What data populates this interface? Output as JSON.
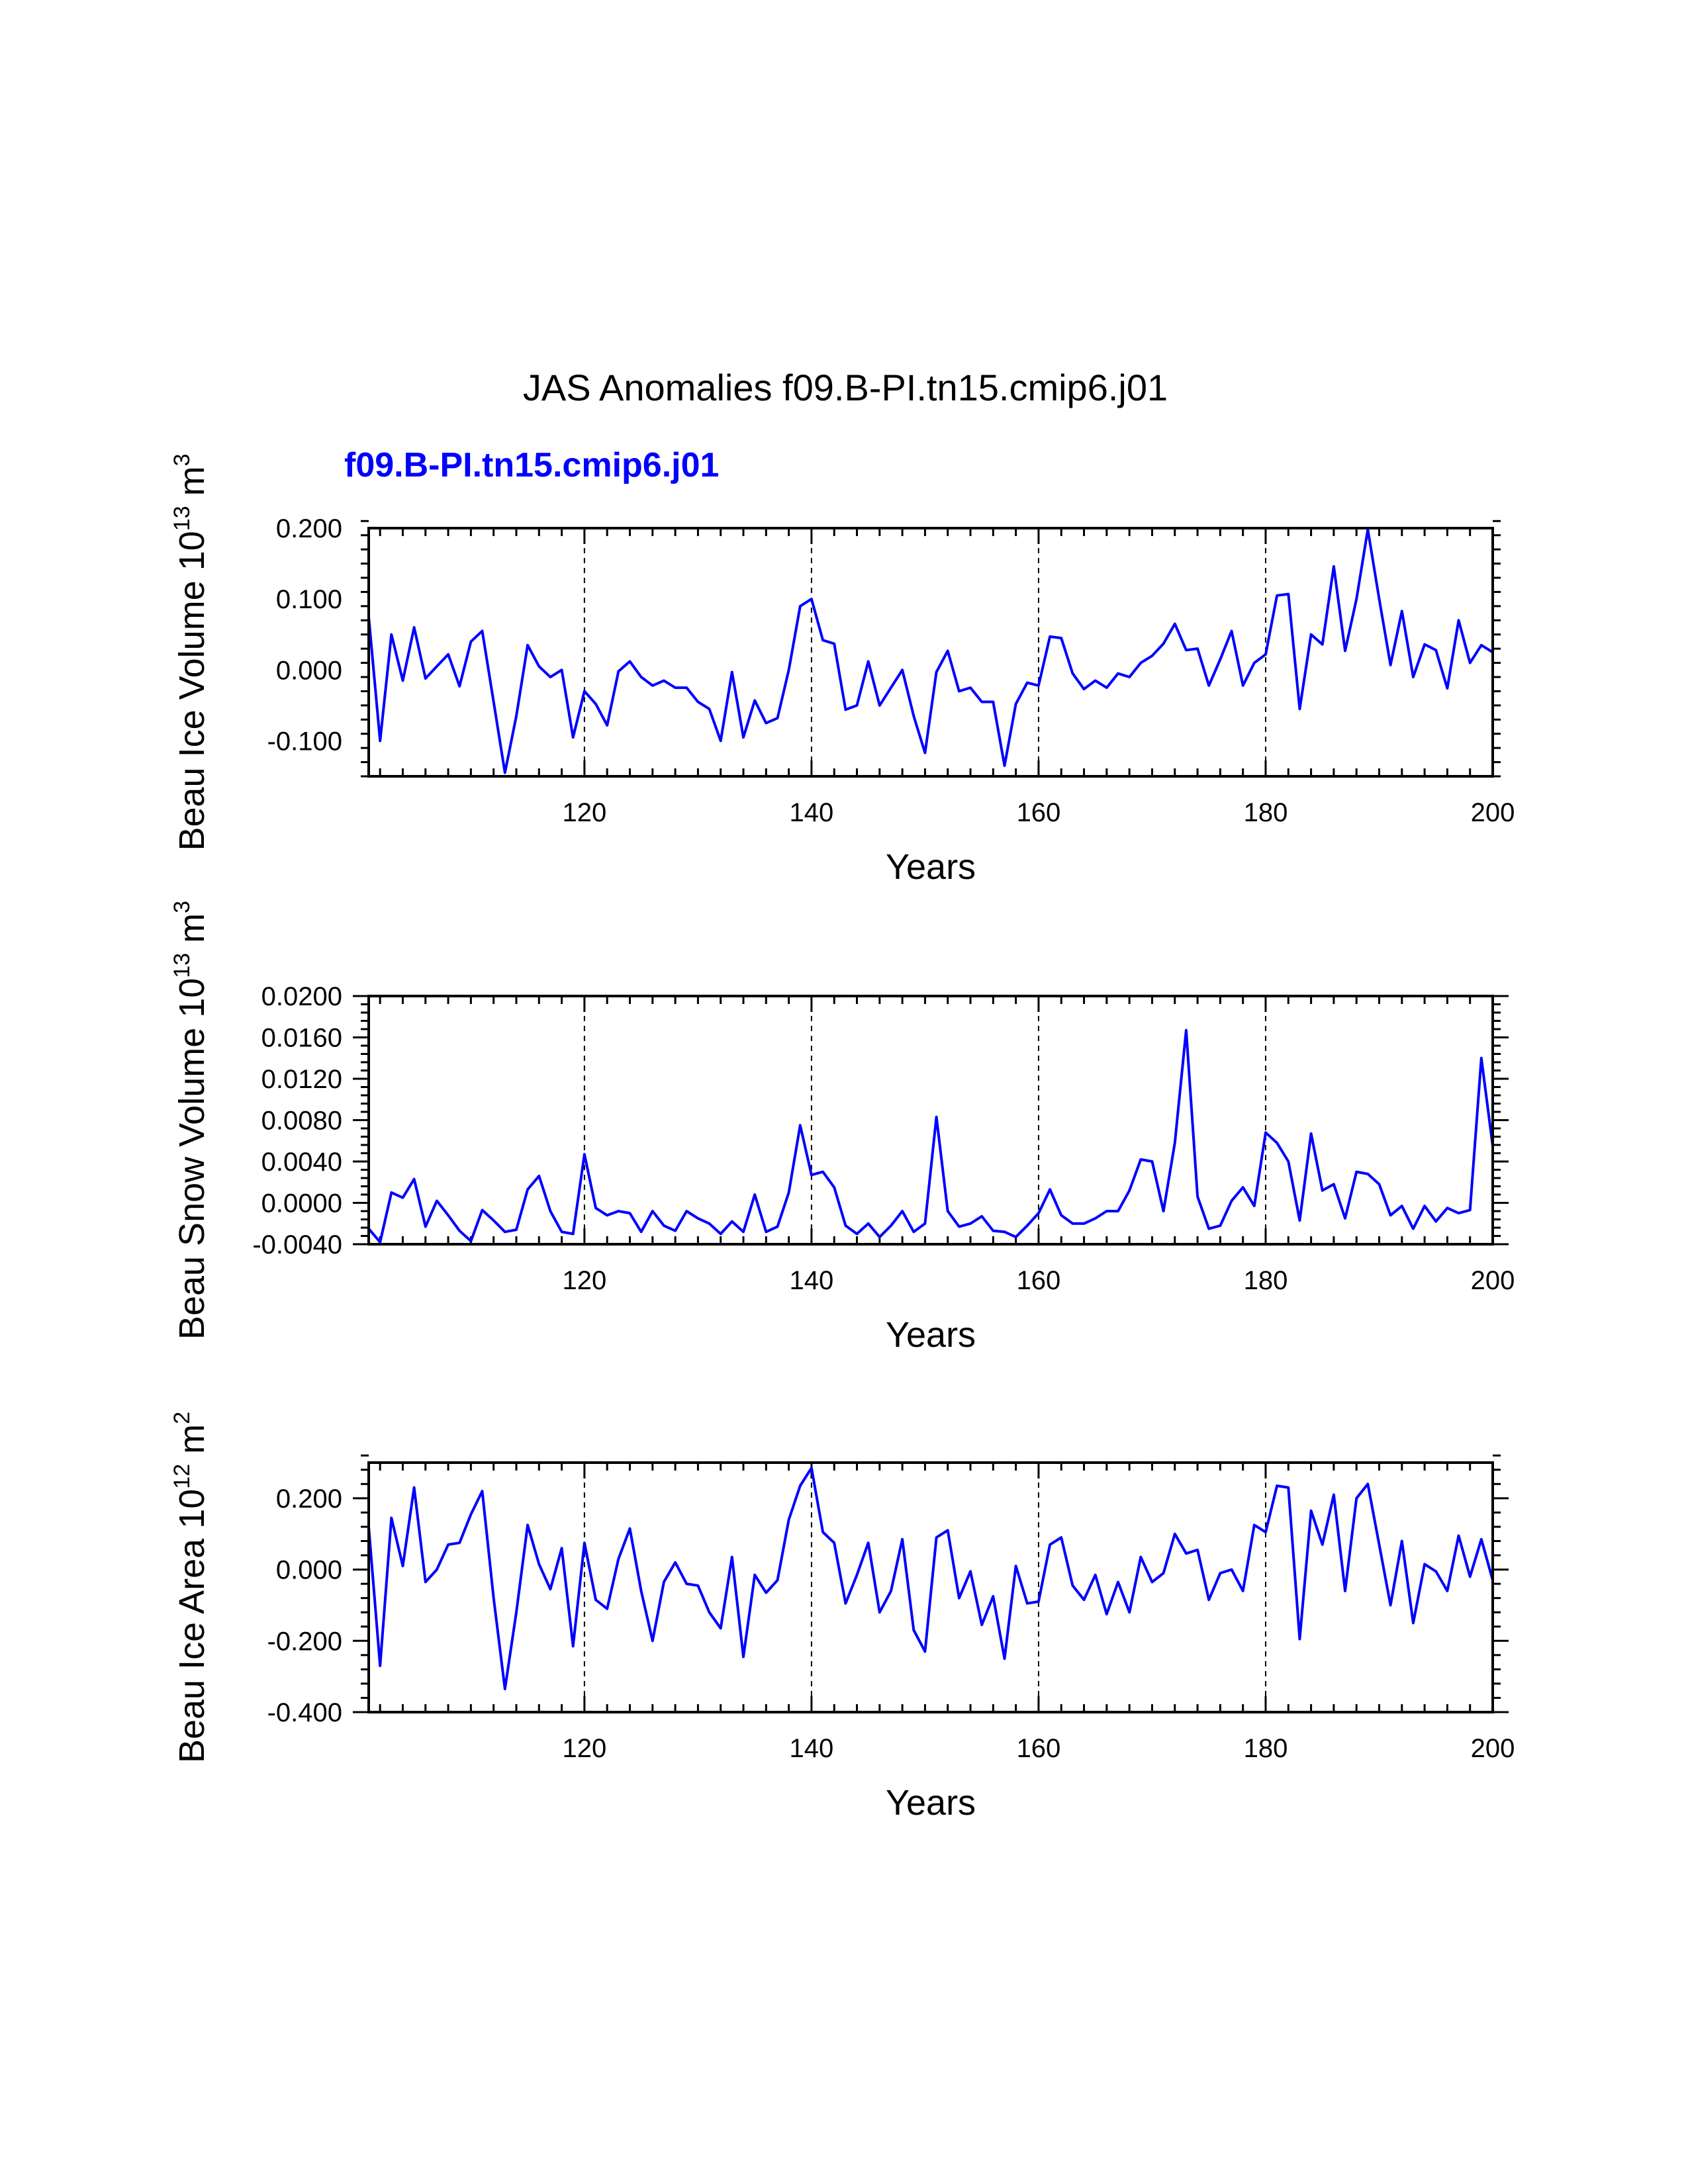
{
  "figure": {
    "title": "JAS Anomalies f09.B-PI.tn15.cmip6.j01",
    "subtitle": "f09.B-PI.tn15.cmip6.j01"
  },
  "colors": {
    "series": "#0000ff",
    "axes": "#000000",
    "grid": "#000000"
  },
  "chart_data": [
    {
      "type": "line",
      "ylabel": "Beau Ice Volume 10^13 m^3",
      "ylabel_parts": {
        "base": "Beau Ice Volume 10",
        "exp1": "13",
        "unit": " m",
        "exp2": "3"
      },
      "xlabel": "Years",
      "xlim": [
        101,
        200
      ],
      "ylim": [
        -0.15,
        0.2
      ],
      "xticks": [
        120,
        140,
        160,
        180,
        200
      ],
      "xtick_labels": [
        "120",
        "140",
        "160",
        "180",
        "200"
      ],
      "yticks": [
        -0.1,
        0.0,
        0.1,
        0.2
      ],
      "ytick_labels": [
        "-0.100",
        "0.000",
        "0.100",
        "0.200"
      ],
      "grid_x": [
        120,
        140,
        160,
        180
      ],
      "series": [
        {
          "name": "f09.B-PI.tn15.cmip6.j01",
          "x_start": 101,
          "values": [
            0.075,
            -0.1,
            0.05,
            -0.015,
            0.06,
            -0.012,
            0.005,
            0.022,
            -0.023,
            0.04,
            0.055,
            -0.045,
            -0.145,
            -0.065,
            0.035,
            0.005,
            -0.01,
            0.0,
            -0.095,
            -0.03,
            -0.048,
            -0.078,
            -0.002,
            0.012,
            -0.01,
            -0.022,
            -0.015,
            -0.025,
            -0.025,
            -0.045,
            -0.055,
            -0.1,
            -0.003,
            -0.095,
            -0.043,
            -0.075,
            -0.068,
            0.0,
            0.09,
            0.1,
            0.042,
            0.037,
            -0.056,
            -0.05,
            0.012,
            -0.05,
            -0.025,
            0.0,
            -0.065,
            -0.117,
            -0.003,
            0.027,
            -0.03,
            -0.025,
            -0.045,
            -0.045,
            -0.135,
            -0.048,
            -0.018,
            -0.022,
            0.047,
            0.045,
            -0.005,
            -0.027,
            -0.015,
            -0.025,
            -0.005,
            -0.01,
            0.01,
            0.02,
            0.037,
            0.065,
            0.028,
            0.03,
            -0.022,
            0.015,
            0.055,
            -0.022,
            0.01,
            0.022,
            0.105,
            0.107,
            -0.055,
            0.05,
            0.036,
            0.146,
            0.027,
            0.1,
            0.198,
            0.1,
            0.007,
            0.083,
            -0.01,
            0.036,
            0.028,
            -0.026,
            0.07,
            0.01,
            0.035,
            0.025
          ]
        }
      ]
    },
    {
      "type": "line",
      "ylabel": "Beau Snow Volume 10^13 m^3",
      "ylabel_parts": {
        "base": "Beau Snow Volume 10",
        "exp1": "13",
        "unit": " m",
        "exp2": "3"
      },
      "xlabel": "Years",
      "xlim": [
        101,
        200
      ],
      "ylim": [
        -0.004,
        0.02
      ],
      "xticks": [
        120,
        140,
        160,
        180,
        200
      ],
      "xtick_labels": [
        "120",
        "140",
        "160",
        "180",
        "200"
      ],
      "yticks": [
        -0.004,
        0.0,
        0.004,
        0.008,
        0.012,
        0.016,
        0.02
      ],
      "ytick_labels": [
        "-0.0040",
        "0.0000",
        "0.0040",
        "0.0080",
        "0.0120",
        "0.0160",
        "0.0200"
      ],
      "grid_x": [
        120,
        140,
        160,
        180
      ],
      "series": [
        {
          "name": "f09.B-PI.tn15.cmip6.j01",
          "x_start": 101,
          "values": [
            -0.0025,
            -0.0038,
            0.001,
            0.0005,
            0.0023,
            -0.0023,
            0.0002,
            -0.0012,
            -0.0027,
            -0.0037,
            -0.0007,
            -0.0017,
            -0.0028,
            -0.0026,
            0.0013,
            0.0026,
            -0.0008,
            -0.0028,
            -0.003,
            0.0047,
            -0.0005,
            -0.0012,
            -0.0008,
            -0.001,
            -0.0028,
            -0.0008,
            -0.0022,
            -0.0027,
            -0.0008,
            -0.0015,
            -0.002,
            -0.003,
            -0.0018,
            -0.0028,
            0.0008,
            -0.0028,
            -0.0023,
            0.001,
            0.0075,
            0.0027,
            0.003,
            0.0015,
            -0.0022,
            -0.003,
            -0.002,
            -0.0033,
            -0.0022,
            -0.0008,
            -0.0028,
            -0.002,
            0.0083,
            -0.0008,
            -0.0023,
            -0.002,
            -0.0013,
            -0.0027,
            -0.0028,
            -0.0033,
            -0.0022,
            -0.001,
            0.0013,
            -0.0012,
            -0.002,
            -0.002,
            -0.0015,
            -0.0008,
            -0.0008,
            0.0012,
            0.0042,
            0.004,
            -0.0008,
            0.0058,
            0.0167,
            0.0006,
            -0.0025,
            -0.0022,
            0.0002,
            0.0015,
            -0.0003,
            0.0068,
            0.0058,
            0.004,
            -0.0017,
            0.0067,
            0.0012,
            0.0018,
            -0.0015,
            0.003,
            0.0028,
            0.0018,
            -0.0012,
            -0.0003,
            -0.0025,
            -0.0003,
            -0.0018,
            -0.0005,
            -0.001,
            -0.0007,
            0.014,
            0.0055
          ]
        }
      ]
    },
    {
      "type": "line",
      "ylabel": "Beau Ice Area 10^12 m^2",
      "ylabel_parts": {
        "base": "Beau Ice Area 10",
        "exp1": "12",
        "unit": " m",
        "exp2": "2"
      },
      "xlabel": "Years",
      "xlim": [
        101,
        200
      ],
      "ylim": [
        -0.4,
        0.3
      ],
      "xticks": [
        120,
        140,
        160,
        180,
        200
      ],
      "xtick_labels": [
        "120",
        "140",
        "160",
        "180",
        "200"
      ],
      "yticks": [
        -0.4,
        -0.2,
        0.0,
        0.2
      ],
      "ytick_labels": [
        "-0.400",
        "-0.200",
        "0.000",
        "0.200"
      ],
      "grid_x": [
        120,
        140,
        160,
        180
      ],
      "series": [
        {
          "name": "f09.B-PI.tn15.cmip6.j01",
          "x_start": 101,
          "values": [
            0.12,
            -0.27,
            0.145,
            0.01,
            0.23,
            -0.035,
            0.0,
            0.07,
            0.075,
            0.155,
            0.22,
            -0.08,
            -0.335,
            -0.12,
            0.125,
            0.015,
            -0.055,
            0.06,
            -0.215,
            0.075,
            -0.085,
            -0.11,
            0.03,
            0.115,
            -0.06,
            -0.2,
            -0.035,
            0.02,
            -0.04,
            -0.045,
            -0.12,
            -0.165,
            0.035,
            -0.245,
            -0.015,
            -0.065,
            -0.03,
            0.14,
            0.235,
            0.285,
            0.105,
            0.075,
            -0.095,
            -0.015,
            0.075,
            -0.12,
            -0.06,
            0.085,
            -0.17,
            -0.23,
            0.09,
            0.11,
            -0.08,
            -0.005,
            -0.155,
            -0.075,
            -0.25,
            0.01,
            -0.095,
            -0.09,
            0.07,
            0.09,
            -0.045,
            -0.085,
            -0.015,
            -0.125,
            -0.035,
            -0.12,
            0.035,
            -0.035,
            -0.01,
            0.1,
            0.045,
            0.055,
            -0.085,
            -0.01,
            0.0,
            -0.06,
            0.125,
            0.105,
            0.235,
            0.23,
            -0.195,
            0.165,
            0.07,
            0.21,
            -0.06,
            0.2,
            0.24,
            0.07,
            -0.1,
            0.08,
            -0.15,
            0.015,
            -0.005,
            -0.06,
            0.095,
            -0.02,
            0.085,
            -0.03
          ]
        }
      ]
    }
  ]
}
